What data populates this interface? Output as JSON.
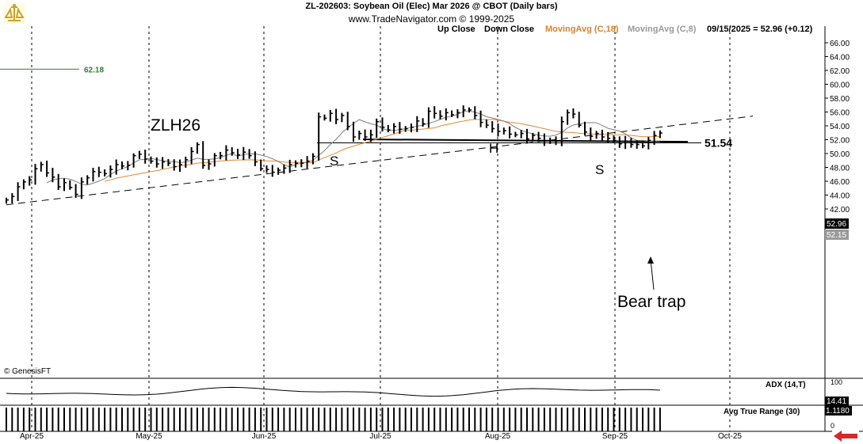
{
  "header": {
    "title": "ZL-202603:  Soybean Oil (Elec) Mar 2026 @ CBOT  (Daily bars)",
    "subtitle": "www.TradeNavigator.com © 1999-2025"
  },
  "legend": {
    "up_close": "Up Close",
    "down_close": "Down Close",
    "ma18": "MovingAvg (C,18)",
    "ma8": "MovingAvg (C,8)",
    "last_quote": "09/15/2025 = 52.96 (+0.12)"
  },
  "colors": {
    "bars": "#000000",
    "ma18": "#e08a33",
    "ma8": "#808080",
    "ref_line_62": "#2e7d2e",
    "ma18_label": "#d9822b",
    "ma8_label": "#999999",
    "arrow": "#d62828"
  },
  "annotations": {
    "symbol": "ZLH26",
    "shoulder_left": "S",
    "head": "H",
    "shoulder_right": "S",
    "neckline_value": "51.54",
    "bear_trap": "Bear trap",
    "ref_level": "62.18",
    "watermark": "© GenesisFT"
  },
  "price_badges": {
    "last": "52.96",
    "ma": "52.15"
  },
  "indicators": {
    "adx_label": "ADX (14,T)",
    "adx_value": "14.41",
    "adx_tick_top": "100",
    "adx_tick_bottom": "0",
    "atr_label": "Avg True Range (30)",
    "atr_value": "1.1180",
    "atr_tick": "0"
  },
  "chart_data": {
    "type": "ohlc",
    "ylim": [
      42,
      67
    ],
    "y_ticks": [
      "66.00",
      "64.00",
      "62.00",
      "60.00",
      "58.00",
      "56.00",
      "54.00",
      "52.00",
      "50.00",
      "48.00",
      "46.00",
      "44.00",
      "42.00"
    ],
    "months": [
      "Apr-25",
      "May-25",
      "Jun-25",
      "Jul-25",
      "Aug-25",
      "Sep-25",
      "Oct-25"
    ],
    "neckline": 51.54,
    "ref_level": 62.18,
    "closes": [
      43.3,
      43.8,
      45.2,
      45.9,
      46.2,
      47.8,
      48.4,
      47.2,
      46.6,
      45.2,
      45.8,
      45.1,
      44.1,
      45.9,
      46.5,
      47.4,
      47.3,
      47.1,
      47.7,
      48.4,
      48.2,
      48.3,
      49.7,
      49.9,
      49.2,
      48.9,
      48.5,
      48.8,
      48.6,
      48.1,
      48.4,
      49.1,
      50.3,
      51.3,
      48.3,
      48.5,
      49.7,
      49.7,
      50.5,
      50.1,
      49.8,
      50.2,
      49.7,
      48.8,
      47.8,
      47.7,
      47.3,
      47.6,
      47.9,
      48.4,
      48.6,
      48.6,
      48.9,
      49.6,
      55.3,
      55.1,
      55.8,
      54.9,
      55.5,
      53.9,
      52.4,
      52.9,
      52.4,
      52.7,
      54.6,
      53.8,
      53.4,
      53.9,
      53.5,
      53.6,
      53.8,
      54.7,
      54.3,
      56.1,
      55.8,
      55.4,
      55.9,
      55.6,
      55.9,
      56.3,
      56.3,
      55.5,
      54.5,
      54.1,
      53.6,
      53.2,
      53.3,
      52.8,
      52.7,
      52.9,
      52.1,
      52.6,
      52.2,
      51.8,
      51.9,
      51.8,
      54.6,
      55.9,
      55.7,
      54.1,
      53.1,
      52.5,
      52.9,
      52.4,
      52.2,
      51.9,
      51.4,
      51.8,
      51.3,
      51.3,
      51.1,
      51.9,
      52.6,
      52.96
    ],
    "series": [
      {
        "name": "MovingAvg (C,18)",
        "values": [
          null,
          null,
          null,
          null,
          null,
          null,
          null,
          null,
          null,
          null,
          null,
          null,
          null,
          null,
          null,
          null,
          null,
          45.99,
          46.2,
          46.45,
          46.59,
          46.75,
          46.92,
          47.07,
          47.23,
          47.42,
          47.52,
          47.72,
          47.88,
          48.08,
          48.23,
          48.32,
          48.46,
          48.62,
          48.67,
          48.74,
          48.83,
          48.93,
          48.97,
          49.04,
          49.07,
          49.09,
          49.1,
          49.09,
          49.03,
          48.95,
          48.91,
          48.88,
          48.77,
          48.71,
          48.73,
          48.73,
          48.7,
          48.68,
          49.06,
          49.41,
          49.74,
          50.08,
          50.5,
          50.81,
          51.07,
          51.32,
          51.56,
          51.8,
          52.08,
          52.32,
          52.57,
          52.82,
          53.09,
          53.4,
          53.36,
          53.45,
          53.53,
          53.62,
          53.7,
          53.99,
          54.17,
          54.32,
          54.54,
          54.68,
          54.85,
          54.95,
          54.91,
          54.89,
          54.92,
          54.83,
          54.67,
          54.51,
          54.43,
          54.31,
          54.14,
          53.96,
          53.78,
          53.59,
          53.39,
          53.2,
          53.11,
          53.06,
          53.03,
          52.94,
          52.86,
          52.83,
          52.79,
          52.76,
          52.73,
          52.72,
          52.71,
          52.71,
          52.62,
          52.53,
          52.43,
          52.44,
          52.45,
          52.46
        ]
      },
      {
        "name": "MovingAvg (C,8)",
        "values": [
          null,
          null,
          null,
          null,
          null,
          null,
          null,
          45.76,
          46.17,
          46.35,
          46.42,
          46.3,
          45.99,
          45.58,
          45.46,
          45.71,
          46.01,
          46.37,
          46.96,
          47.49,
          47.8,
          48.13,
          48.65,
          49.1,
          49.18,
          49.3,
          49.13,
          48.97,
          48.88,
          48.81,
          48.72,
          48.76,
          49.04,
          49.34,
          49.16,
          49.16,
          49.23,
          49.4,
          49.76,
          49.97,
          49.64,
          49.84,
          49.96,
          49.95,
          49.78,
          49.57,
          49.25,
          48.87,
          48.35,
          48.08,
          48.44,
          48.6,
          48.73,
          49.01,
          49.74,
          50.44,
          51.3,
          52.06,
          52.98,
          53.72,
          54.35,
          54.9,
          54.58,
          54.3,
          54.12,
          53.61,
          53.36,
          53.33,
          53.48,
          53.57,
          53.79,
          53.95,
          54.07,
          54.38,
          54.61,
          54.93,
          55.24,
          55.41,
          55.65,
          56.08,
          56.17,
          55.95,
          55.71,
          55.31,
          55.14,
          54.91,
          54.69,
          54.31,
          53.76,
          53.36,
          53.05,
          52.86,
          52.65,
          52.53,
          52.5,
          52.68,
          53.05,
          53.69,
          54.12,
          54.27,
          54.43,
          54.47,
          54.45,
          54.07,
          53.64,
          53.44,
          53.24,
          52.84,
          52.26,
          51.9,
          51.9,
          51.8,
          51.72,
          51.64
        ]
      }
    ]
  }
}
